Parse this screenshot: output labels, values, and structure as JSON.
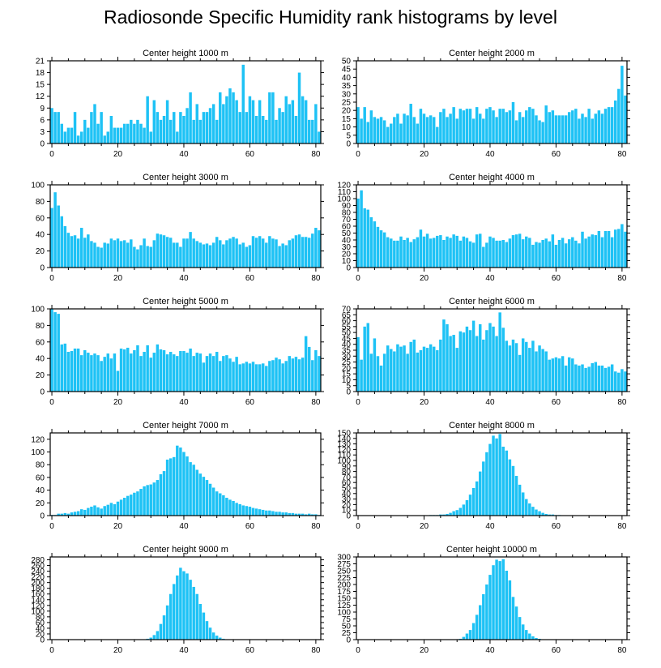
{
  "figure": {
    "title": "Radiosonde Specific Humidity rank histograms by level",
    "bar_color": "#1ec2f5",
    "axis_color": "#000000"
  },
  "chart_data": [
    {
      "type": "bar",
      "title": "Center height 1000 m",
      "x_start": 0,
      "xlim": [
        -0.5,
        81.5
      ],
      "xticks": [
        0,
        20,
        40,
        60,
        80
      ],
      "ylim": [
        0,
        21
      ],
      "yticks": [
        0,
        3,
        6,
        9,
        12,
        15,
        18,
        21
      ],
      "values": [
        9,
        8,
        8,
        5,
        3,
        4,
        4,
        8,
        2,
        3,
        6,
        4,
        8,
        10,
        5,
        8,
        2,
        3,
        7,
        4,
        4,
        4,
        5,
        5,
        6,
        5,
        6,
        5,
        4,
        12,
        3,
        11,
        8,
        6,
        7,
        11,
        6,
        8,
        3,
        8,
        7,
        9,
        13,
        6,
        10,
        6,
        8,
        8,
        9,
        10,
        6,
        13,
        10,
        12,
        14,
        13,
        11,
        8,
        20,
        8,
        12,
        11,
        7,
        11,
        7,
        6,
        13,
        13,
        6,
        9,
        8,
        12,
        10,
        11,
        7,
        18,
        12,
        11,
        6,
        6,
        10,
        3
      ]
    },
    {
      "type": "bar",
      "title": "Center height 2000 m",
      "x_start": 0,
      "xlim": [
        -0.5,
        81.5
      ],
      "xticks": [
        0,
        20,
        40,
        60,
        80
      ],
      "ylim": [
        0,
        50
      ],
      "yticks": [
        0,
        5,
        10,
        15,
        20,
        25,
        30,
        35,
        40,
        45,
        50
      ],
      "values": [
        22,
        15,
        22,
        13,
        20,
        16,
        15,
        16,
        14,
        10,
        12,
        16,
        18,
        12,
        18,
        17,
        24,
        16,
        12,
        21,
        18,
        16,
        17,
        16,
        10,
        19,
        21,
        16,
        18,
        22,
        15,
        21,
        20,
        21,
        21,
        15,
        22,
        18,
        15,
        21,
        22,
        20,
        16,
        21,
        21,
        19,
        20,
        25,
        14,
        19,
        16,
        20,
        22,
        21,
        17,
        14,
        13,
        23,
        19,
        20,
        17,
        17,
        17,
        17,
        19,
        20,
        21,
        15,
        18,
        16,
        21,
        15,
        18,
        20,
        18,
        21,
        22,
        22,
        26,
        33,
        47,
        29
      ]
    },
    {
      "type": "bar",
      "title": "Center height 3000 m",
      "x_start": 0,
      "xlim": [
        -0.5,
        81.5
      ],
      "xticks": [
        0,
        20,
        40,
        60,
        80
      ],
      "ylim": [
        0,
        100
      ],
      "yticks": [
        0,
        20,
        40,
        60,
        80,
        100
      ],
      "values": [
        72,
        91,
        75,
        62,
        50,
        42,
        38,
        39,
        35,
        48,
        36,
        40,
        32,
        30,
        25,
        24,
        30,
        29,
        35,
        33,
        35,
        32,
        33,
        30,
        34,
        25,
        22,
        27,
        35,
        26,
        25,
        33,
        41,
        40,
        39,
        37,
        36,
        30,
        30,
        25,
        35,
        35,
        43,
        35,
        32,
        30,
        28,
        29,
        27,
        30,
        37,
        33,
        28,
        33,
        35,
        37,
        35,
        28,
        30,
        25,
        27,
        38,
        36,
        38,
        35,
        30,
        38,
        35,
        34,
        26,
        29,
        27,
        33,
        35,
        39,
        40,
        37,
        37,
        36,
        41,
        48,
        45
      ]
    },
    {
      "type": "bar",
      "title": "Center height 4000 m",
      "x_start": 0,
      "xlim": [
        -0.5,
        81.5
      ],
      "xticks": [
        0,
        20,
        40,
        60,
        80
      ],
      "ylim": [
        0,
        120
      ],
      "yticks": [
        0,
        10,
        20,
        30,
        40,
        50,
        60,
        70,
        80,
        90,
        100,
        110,
        120
      ],
      "values": [
        100,
        112,
        86,
        84,
        73,
        67,
        59,
        54,
        51,
        44,
        42,
        39,
        39,
        45,
        40,
        43,
        37,
        41,
        44,
        55,
        45,
        49,
        42,
        43,
        46,
        47,
        40,
        45,
        43,
        48,
        46,
        39,
        45,
        43,
        38,
        36,
        48,
        49,
        30,
        36,
        45,
        43,
        39,
        39,
        40,
        37,
        42,
        47,
        48,
        49,
        41,
        45,
        43,
        33,
        37,
        36,
        40,
        42,
        38,
        48,
        33,
        40,
        43,
        35,
        41,
        44,
        39,
        35,
        52,
        42,
        45,
        48,
        47,
        53,
        44,
        53,
        53,
        44,
        55,
        56,
        63,
        52
      ]
    },
    {
      "type": "bar",
      "title": "Center height 5000 m",
      "x_start": 0,
      "xlim": [
        -0.5,
        81.5
      ],
      "xticks": [
        0,
        20,
        40,
        60,
        80
      ],
      "ylim": [
        0,
        100
      ],
      "yticks": [
        0,
        20,
        40,
        60,
        80,
        100
      ],
      "values": [
        100,
        96,
        94,
        57,
        58,
        48,
        49,
        52,
        52,
        44,
        50,
        47,
        44,
        46,
        44,
        37,
        42,
        46,
        40,
        46,
        25,
        52,
        51,
        53,
        46,
        50,
        56,
        43,
        48,
        56,
        41,
        47,
        57,
        51,
        50,
        45,
        48,
        45,
        43,
        49,
        49,
        47,
        52,
        43,
        47,
        46,
        35,
        43,
        46,
        43,
        48,
        37,
        43,
        44,
        40,
        36,
        42,
        33,
        34,
        36,
        34,
        36,
        33,
        33,
        34,
        31,
        37,
        38,
        41,
        39,
        34,
        37,
        43,
        40,
        42,
        39,
        41,
        67,
        54,
        38,
        50,
        43
      ]
    },
    {
      "type": "bar",
      "title": "Center height 6000 m",
      "x_start": 0,
      "xlim": [
        -0.5,
        81.5
      ],
      "xticks": [
        0,
        20,
        40,
        60,
        80
      ],
      "ylim": [
        0,
        70
      ],
      "yticks": [
        0,
        5,
        10,
        15,
        20,
        25,
        30,
        35,
        40,
        45,
        50,
        55,
        60,
        65,
        70
      ],
      "values": [
        46,
        27,
        55,
        58,
        32,
        45,
        30,
        22,
        32,
        39,
        36,
        34,
        40,
        38,
        39,
        32,
        42,
        44,
        33,
        35,
        38,
        37,
        40,
        38,
        35,
        44,
        61,
        57,
        47,
        48,
        37,
        51,
        50,
        55,
        52,
        60,
        47,
        57,
        44,
        52,
        58,
        55,
        47,
        67,
        54,
        43,
        39,
        44,
        41,
        31,
        45,
        42,
        37,
        43,
        34,
        39,
        36,
        34,
        27,
        28,
        29,
        28,
        30,
        22,
        29,
        28,
        23,
        22,
        23,
        20,
        21,
        24,
        25,
        22,
        22,
        20,
        21,
        23,
        17,
        16,
        19,
        17
      ]
    },
    {
      "type": "bar",
      "title": "Center height 7000 m",
      "x_start": 0,
      "xlim": [
        -0.5,
        81.5
      ],
      "xticks": [
        0,
        20,
        40,
        60,
        80
      ],
      "ylim": [
        0,
        130
      ],
      "yticks": [
        0,
        20,
        40,
        60,
        80,
        100,
        120
      ],
      "values": [
        1,
        1,
        3,
        3,
        4,
        3,
        5,
        6,
        7,
        10,
        9,
        12,
        14,
        16,
        13,
        11,
        15,
        17,
        20,
        18,
        22,
        25,
        28,
        31,
        33,
        36,
        38,
        42,
        46,
        48,
        49,
        52,
        56,
        65,
        70,
        88,
        90,
        92,
        110,
        107,
        100,
        93,
        84,
        80,
        72,
        66,
        61,
        56,
        50,
        44,
        38,
        35,
        32,
        28,
        25,
        23,
        20,
        18,
        16,
        15,
        14,
        12,
        11,
        10,
        9,
        8,
        8,
        7,
        6,
        6,
        5,
        5,
        4,
        4,
        3,
        3,
        3,
        2,
        3,
        2,
        2,
        1
      ]
    },
    {
      "type": "bar",
      "title": "Center height 8000 m",
      "x_start": 0,
      "xlim": [
        -0.5,
        81.5
      ],
      "xticks": [
        0,
        20,
        40,
        60,
        80
      ],
      "ylim": [
        0,
        150
      ],
      "yticks": [
        0,
        10,
        20,
        30,
        40,
        50,
        60,
        70,
        80,
        90,
        100,
        110,
        120,
        130,
        140,
        150
      ],
      "values": [
        0,
        0,
        0,
        0,
        0,
        0,
        0,
        0,
        0,
        0,
        0,
        0,
        0,
        0,
        0,
        0,
        0,
        0,
        0,
        0,
        0,
        0,
        1,
        1,
        1,
        2,
        2,
        3,
        5,
        8,
        10,
        14,
        20,
        28,
        38,
        50,
        62,
        80,
        98,
        115,
        130,
        145,
        140,
        148,
        125,
        118,
        102,
        90,
        72,
        56,
        42,
        30,
        22,
        16,
        11,
        8,
        5,
        3,
        2,
        2,
        1,
        1,
        0,
        0,
        0,
        0,
        0,
        0,
        0,
        0,
        0,
        0,
        0,
        0,
        0,
        0,
        0,
        0,
        0,
        0,
        0,
        0
      ]
    },
    {
      "type": "bar",
      "title": "Center height 9000 m",
      "x_start": 0,
      "xlim": [
        -0.5,
        81.5
      ],
      "xticks": [
        0,
        20,
        40,
        60,
        80
      ],
      "ylim": [
        0,
        290
      ],
      "yticks": [
        0,
        20,
        40,
        60,
        80,
        100,
        120,
        140,
        160,
        180,
        200,
        220,
        240,
        260,
        280
      ],
      "values": [
        0,
        0,
        0,
        0,
        0,
        0,
        0,
        0,
        0,
        0,
        0,
        0,
        0,
        0,
        0,
        0,
        0,
        0,
        0,
        0,
        0,
        0,
        0,
        0,
        0,
        0,
        0,
        0,
        1,
        3,
        7,
        16,
        30,
        55,
        85,
        120,
        160,
        195,
        225,
        252,
        240,
        232,
        210,
        185,
        160,
        125,
        95,
        65,
        42,
        25,
        14,
        7,
        3,
        1,
        0,
        0,
        0,
        0,
        0,
        0,
        0,
        0,
        0,
        0,
        0,
        0,
        0,
        0,
        0,
        0,
        0,
        0,
        0,
        0,
        0,
        0,
        0,
        0,
        0,
        0,
        0,
        0
      ]
    },
    {
      "type": "bar",
      "title": "Center height 10000 m",
      "x_start": 0,
      "xlim": [
        -0.5,
        81.5
      ],
      "xticks": [
        0,
        20,
        40,
        60,
        80
      ],
      "ylim": [
        0,
        300
      ],
      "yticks": [
        0,
        25,
        50,
        75,
        100,
        125,
        150,
        175,
        200,
        225,
        250,
        275,
        300
      ],
      "values": [
        0,
        0,
        0,
        0,
        0,
        0,
        0,
        0,
        0,
        0,
        0,
        0,
        0,
        0,
        0,
        0,
        0,
        0,
        0,
        0,
        0,
        0,
        0,
        0,
        0,
        0,
        0,
        0,
        0,
        0,
        0,
        3,
        10,
        22,
        35,
        60,
        90,
        125,
        165,
        200,
        235,
        270,
        290,
        285,
        292,
        250,
        215,
        155,
        120,
        82,
        55,
        35,
        22,
        12,
        6,
        3,
        1,
        0,
        0,
        0,
        0,
        0,
        0,
        0,
        0,
        0,
        0,
        0,
        0,
        0,
        0,
        0,
        0,
        0,
        0,
        0,
        0,
        0,
        0,
        0,
        0,
        0
      ]
    }
  ]
}
